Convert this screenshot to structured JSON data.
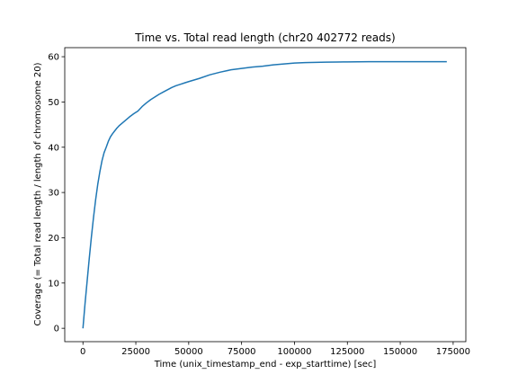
{
  "chart_data": {
    "type": "line",
    "title": "Time vs. Total read length (chr20 402772 reads)",
    "xlabel": "Time (unix_timestamp_end - exp_starttime) [sec]",
    "ylabel": "Coverage (= Total read length / length of chromosome 20)",
    "xlim": [
      -8600,
      181000
    ],
    "ylim": [
      -2.95,
      62
    ],
    "xticks": [
      0,
      25000,
      50000,
      75000,
      100000,
      125000,
      150000,
      175000
    ],
    "yticks": [
      0,
      10,
      20,
      30,
      40,
      50,
      60
    ],
    "grid": false,
    "color": "#1f77b4",
    "series": [
      {
        "x": [
          0,
          1000,
          2000,
          3000,
          4000,
          5000,
          6000,
          7000,
          8000,
          9000,
          10000,
          11000,
          12000,
          13000,
          14000,
          15000,
          16000,
          17000,
          18000,
          20000,
          22000,
          24000,
          26000,
          28000,
          30000,
          32000,
          34000,
          36000,
          38000,
          40000,
          42000,
          44000,
          46000,
          48000,
          50000,
          55000,
          60000,
          65000,
          70000,
          75000,
          80000,
          85000,
          90000,
          95000,
          100000,
          105000,
          110000,
          115000,
          120000,
          125000,
          130000,
          135000,
          140000,
          145000,
          150000,
          160000,
          172000
        ],
        "y": [
          0,
          5.5,
          10.5,
          15.5,
          20.2,
          24.5,
          28.4,
          31.8,
          34.6,
          37.0,
          38.8,
          40.0,
          41.3,
          42.3,
          43.0,
          43.6,
          44.2,
          44.7,
          45.1,
          45.9,
          46.7,
          47.4,
          48.0,
          49.0,
          49.8,
          50.5,
          51.1,
          51.7,
          52.2,
          52.7,
          53.2,
          53.6,
          53.9,
          54.2,
          54.5,
          55.2,
          56.0,
          56.6,
          57.1,
          57.4,
          57.7,
          57.9,
          58.2,
          58.4,
          58.6,
          58.7,
          58.75,
          58.8,
          58.82,
          58.85,
          58.88,
          58.9,
          58.9,
          58.9,
          58.9,
          58.9,
          58.9
        ]
      }
    ]
  }
}
